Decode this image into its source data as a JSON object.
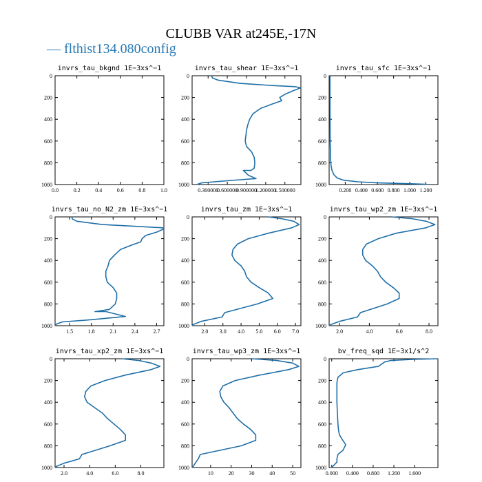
{
  "title": "CLUBB VAR at245E,-17N",
  "legend": {
    "label": "— flthist134.080config",
    "color": "#2a7ab5"
  },
  "line_color": "#1f6fa8",
  "chart_data": [
    {
      "type": "line",
      "title": "invrs_tau_bkgnd",
      "units": "1E−3xs^−1",
      "xlim": [
        0,
        1
      ],
      "ylim": [
        1000,
        0
      ],
      "xticks": [
        "0.0",
        "0.2",
        "0.4",
        "0.6",
        "0.8",
        "1.0"
      ],
      "xtick_values": [
        0,
        0.2,
        0.4,
        0.6,
        0.8,
        1.0
      ],
      "yticks": [
        "0",
        "200",
        "400",
        "600",
        "800",
        "1000"
      ],
      "series": [
        {
          "x": [],
          "y": []
        }
      ]
    },
    {
      "type": "line",
      "title": "invrs_tau_shear",
      "units": "1E−3xs^−1",
      "xlim": [
        0.05,
        1.75
      ],
      "ylim": [
        1000,
        0
      ],
      "xticks": [
        "0.300000",
        "0.600000",
        "0.900000",
        "1.200000",
        "1.500000"
      ],
      "xtick_values": [
        0.3,
        0.6,
        0.9,
        1.2,
        1.5
      ],
      "yticks": [
        "0",
        "200",
        "400",
        "600",
        "800",
        "1000"
      ],
      "series": [
        {
          "x": [
            0.35,
            0.37,
            0.45,
            0.8,
            1.3,
            1.65,
            1.75,
            1.62,
            1.5,
            1.42,
            1.45,
            1.3,
            1.12,
            1.0,
            0.95,
            0.92,
            0.9,
            0.89,
            0.88,
            0.9,
            0.98,
            1.02,
            1.03,
            1.02,
            0.97,
            0.85,
            0.93,
            1.05,
            0.6,
            0.2,
            0.12
          ],
          "y": [
            0,
            20,
            40,
            70,
            90,
            100,
            110,
            140,
            170,
            200,
            230,
            260,
            300,
            350,
            400,
            450,
            500,
            550,
            600,
            650,
            700,
            750,
            800,
            850,
            870,
            870,
            915,
            945,
            965,
            985,
            1000
          ]
        }
      ]
    },
    {
      "type": "line",
      "title": "invrs_tau_sfc",
      "units": "1E−3xs^−1",
      "xlim": [
        0,
        1.35
      ],
      "ylim": [
        1000,
        0
      ],
      "xticks": [
        "0.200",
        "0.400",
        "0.600",
        "0.800",
        "1.000",
        "1.200"
      ],
      "xtick_values": [
        0.2,
        0.4,
        0.6,
        0.8,
        1.0,
        1.2
      ],
      "yticks": [
        "0",
        "200",
        "400",
        "600",
        "800",
        "1000"
      ],
      "series": [
        {
          "x": [
            0.01,
            0.01,
            0.011,
            0.013,
            0.017,
            0.023,
            0.035,
            0.06,
            0.1,
            0.18,
            0.35,
            0.6,
            0.9,
            1.1,
            1.2,
            1.22,
            1.23
          ],
          "y": [
            0,
            200,
            400,
            600,
            750,
            820,
            870,
            910,
            940,
            960,
            975,
            985,
            990,
            995,
            997,
            999,
            1000
          ]
        }
      ]
    },
    {
      "type": "line",
      "title": "invrs_tau_no_N2_zm",
      "units": "1E−3xs^−1",
      "xlim": [
        1.3,
        2.8
      ],
      "ylim": [
        1000,
        0
      ],
      "xticks": [
        "1.5",
        "1.8",
        "2.1",
        "2.4",
        "2.7"
      ],
      "xtick_values": [
        1.5,
        1.8,
        2.1,
        2.4,
        2.7
      ],
      "yticks": [
        "0",
        "200",
        "400",
        "600",
        "800",
        "1000"
      ],
      "series": [
        {
          "x": [
            1.53,
            1.54,
            1.6,
            1.95,
            2.5,
            2.78,
            2.8,
            2.7,
            2.55,
            2.5,
            2.48,
            2.35,
            2.2,
            2.12,
            2.05,
            2.03,
            2.0,
            2.0,
            2.02,
            2.1,
            2.15,
            2.15,
            2.13,
            2.05,
            1.85,
            2.0,
            2.27,
            1.8,
            1.4,
            1.32,
            1.3
          ],
          "y": [
            0,
            20,
            40,
            70,
            90,
            100,
            110,
            140,
            170,
            200,
            230,
            260,
            300,
            350,
            400,
            450,
            500,
            550,
            600,
            650,
            700,
            750,
            800,
            850,
            870,
            870,
            915,
            945,
            965,
            985,
            1000
          ]
        }
      ]
    },
    {
      "type": "line",
      "title": "invrs_tau_zm",
      "units": "1E−3xs^−1",
      "xlim": [
        1.3,
        7.3
      ],
      "ylim": [
        1000,
        0
      ],
      "xticks": [
        "2.0",
        "3.0",
        "4.0",
        "5.0",
        "6.0",
        "7.0"
      ],
      "xtick_values": [
        2,
        3,
        4,
        5,
        6,
        7
      ],
      "yticks": [
        "0",
        "200",
        "400",
        "600",
        "800",
        "1000"
      ],
      "series": [
        {
          "x": [
            5.5,
            6.2,
            6.9,
            7.2,
            6.8,
            5.5,
            4.4,
            3.8,
            3.55,
            3.5,
            3.65,
            4.0,
            4.2,
            4.3,
            4.55,
            5.0,
            5.5,
            5.75,
            4.9,
            3.1,
            2.95,
            1.8,
            1.35,
            1.3
          ],
          "y": [
            0,
            15,
            40,
            70,
            100,
            150,
            200,
            250,
            300,
            350,
            400,
            450,
            500,
            550,
            600,
            650,
            700,
            750,
            800,
            880,
            920,
            960,
            990,
            1000
          ]
        }
      ]
    },
    {
      "type": "line",
      "title": "invrs_tau_wp2_zm",
      "units": "1E−3xs^−1",
      "xlim": [
        1.3,
        8.6
      ],
      "ylim": [
        1000,
        0
      ],
      "xticks": [
        "2.0",
        "4.0",
        "6.0",
        "8.0"
      ],
      "xtick_values": [
        2,
        4,
        6,
        8
      ],
      "yticks": [
        "0",
        "200",
        "400",
        "600",
        "800",
        "1000"
      ],
      "series": [
        {
          "x": [
            5.5,
            6.8,
            7.8,
            8.4,
            7.8,
            5.8,
            4.6,
            3.8,
            3.55,
            3.55,
            3.75,
            4.2,
            4.55,
            4.75,
            5.1,
            5.6,
            6.0,
            6.0,
            5.2,
            3.4,
            3.2,
            2.0,
            1.4,
            1.3
          ],
          "y": [
            0,
            15,
            40,
            70,
            100,
            150,
            200,
            250,
            300,
            350,
            400,
            450,
            500,
            550,
            600,
            650,
            700,
            750,
            800,
            880,
            920,
            960,
            990,
            1000
          ]
        }
      ]
    },
    {
      "type": "line",
      "title": "invrs_tau_xp2_zm",
      "units": "1E−3xs^−1",
      "xlim": [
        1.3,
        9.8
      ],
      "ylim": [
        1000,
        0
      ],
      "xticks": [
        "2.0",
        "4.0",
        "6.0",
        "8.0"
      ],
      "xtick_values": [
        2,
        4,
        6,
        8
      ],
      "yticks": [
        "0",
        "200",
        "400",
        "600",
        "800",
        "1000"
      ],
      "series": [
        {
          "x": [
            6.5,
            7.8,
            8.8,
            9.5,
            8.8,
            6.8,
            5.2,
            4.1,
            3.7,
            3.6,
            3.8,
            4.4,
            5.0,
            5.4,
            5.9,
            6.4,
            6.8,
            6.8,
            5.6,
            3.4,
            3.2,
            2.0,
            1.4,
            1.3
          ],
          "y": [
            0,
            15,
            40,
            70,
            100,
            150,
            200,
            250,
            300,
            350,
            400,
            450,
            500,
            550,
            600,
            650,
            700,
            750,
            800,
            880,
            920,
            960,
            990,
            1000
          ]
        }
      ]
    },
    {
      "type": "line",
      "title": "invrs_tau_wp3_zm",
      "units": "1E−3xs^−1",
      "xlim": [
        1,
        54
      ],
      "ylim": [
        1000,
        0
      ],
      "xticks": [
        "10",
        "20",
        "30",
        "40",
        "50"
      ],
      "xtick_values": [
        10,
        20,
        30,
        40,
        50
      ],
      "yticks": [
        "0",
        "200",
        "400",
        "600",
        "800",
        "1000"
      ],
      "series": [
        {
          "x": [
            30,
            42,
            50,
            53,
            48,
            34,
            22,
            16,
            14.5,
            15,
            16.5,
            19,
            21,
            23,
            26,
            29.5,
            32,
            32,
            25,
            5,
            4,
            2.5,
            1.5,
            1
          ],
          "y": [
            0,
            15,
            40,
            70,
            100,
            150,
            200,
            250,
            300,
            350,
            400,
            450,
            500,
            550,
            600,
            650,
            700,
            750,
            800,
            880,
            920,
            960,
            990,
            1000
          ]
        }
      ]
    },
    {
      "type": "line",
      "title": "bv_freq_sqd",
      "units": "1E−3x1/s^2",
      "xlim": [
        -0.05,
        2.05
      ],
      "ylim": [
        1000,
        0
      ],
      "xticks": [
        "0.000",
        "0.400",
        "0.800",
        "1.200",
        "1.600"
      ],
      "xtick_values": [
        0,
        0.4,
        0.8,
        1.2,
        1.6
      ],
      "yticks": [
        "0",
        "200",
        "400",
        "600",
        "800",
        "1000"
      ],
      "series": [
        {
          "x": [
            2.05,
            1.6,
            1.15,
            1.02,
            0.9,
            0.5,
            0.22,
            0.12,
            0.1,
            0.1,
            0.1,
            0.11,
            0.12,
            0.13,
            0.15,
            0.2,
            0.27,
            0.22,
            0.12,
            0.1,
            0.1,
            0.03,
            0.0,
            0.0
          ],
          "y": [
            0,
            5,
            15,
            30,
            70,
            100,
            130,
            170,
            220,
            300,
            400,
            500,
            600,
            650,
            700,
            740,
            790,
            840,
            880,
            920,
            950,
            985,
            995,
            1000
          ]
        }
      ]
    }
  ]
}
